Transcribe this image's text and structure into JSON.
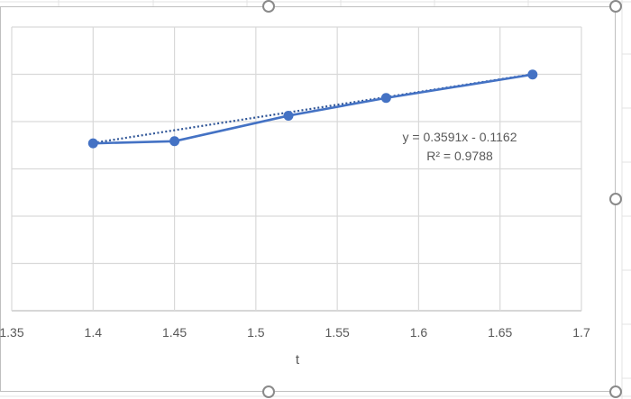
{
  "chart_data": {
    "type": "scatter",
    "x": [
      1.4,
      1.45,
      1.52,
      1.58,
      1.67
    ],
    "y": [
      0.386,
      0.389,
      0.425,
      0.45,
      0.483
    ],
    "xlabel": "t",
    "ylabel": "",
    "title": "",
    "xlim": [
      1.35,
      1.7
    ],
    "ylim": [
      0.15,
      0.55
    ],
    "x_ticks": [
      "1.35",
      "1.4",
      "1.45",
      "1.5",
      "1.55",
      "1.6",
      "1.65",
      "1.7"
    ],
    "grid": true,
    "legend": "none",
    "trendline": {
      "type": "linear",
      "slope": 0.3591,
      "intercept": -0.1162,
      "equation_label": "y = 0.3591x - 0.1162",
      "r2_label": "R² = 0.9788",
      "style": "dotted"
    },
    "colors": {
      "series": "#4472c4",
      "trendline": "#2f5597",
      "grid": "#d9d9d9",
      "text": "#595959"
    }
  }
}
